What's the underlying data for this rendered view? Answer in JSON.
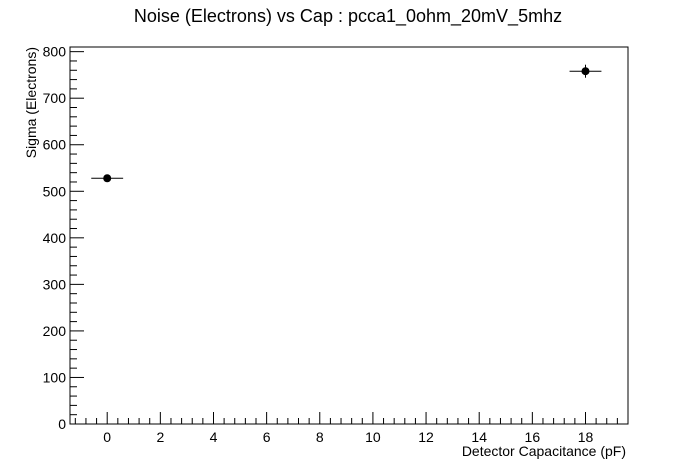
{
  "chart_data": {
    "type": "scatter",
    "title": "Noise (Electrons) vs Cap : pcca1_0ohm_20mV_5mhz",
    "xlabel": "Detector Capacitance (pF)",
    "ylabel": "Sigma (Electrons)",
    "xlim": [
      -1.4,
      19.6
    ],
    "ylim": [
      0,
      810
    ],
    "x_ticks": [
      0,
      2,
      4,
      6,
      8,
      10,
      12,
      14,
      16,
      18
    ],
    "x_tick_labels": [
      "0",
      "2",
      "4",
      "6",
      "8",
      "10",
      "12",
      "14",
      "16",
      "18"
    ],
    "y_ticks": [
      0,
      100,
      200,
      300,
      400,
      500,
      600,
      700,
      800
    ],
    "y_tick_labels": [
      "0",
      "100",
      "200",
      "300",
      "400",
      "500",
      "600",
      "700",
      "800"
    ],
    "grid": false,
    "legend": "none",
    "series": [
      {
        "points": [
          {
            "x": 0,
            "y": 528,
            "x_err": 0.6,
            "y_err": 6
          },
          {
            "x": 18,
            "y": 758,
            "x_err": 0.6,
            "y_err": 14
          }
        ]
      }
    ]
  }
}
